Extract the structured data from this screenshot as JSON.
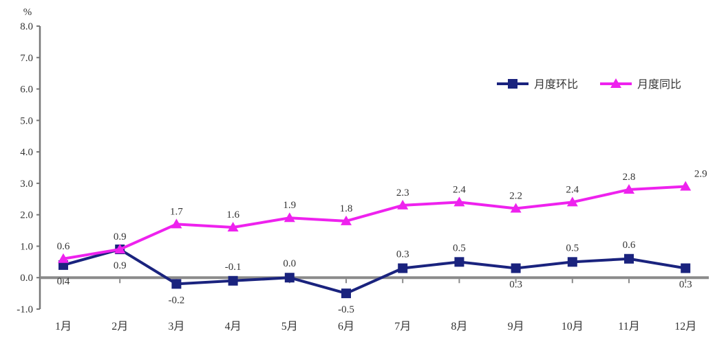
{
  "chart_data": {
    "type": "line",
    "title": "",
    "xlabel": "",
    "ylabel": "%",
    "ylim": [
      -1.0,
      8.0
    ],
    "yticks": [
      "8.0",
      "7.0",
      "6.0",
      "5.0",
      "4.0",
      "3.0",
      "2.0",
      "1.0",
      "0.0",
      "-1.0"
    ],
    "categories": [
      "1月",
      "2月",
      "3月",
      "4月",
      "5月",
      "6月",
      "7月",
      "8月",
      "9月",
      "10月",
      "11月",
      "12月"
    ],
    "grid": false,
    "legend_position": "top-right",
    "series": [
      {
        "name": "月度环比",
        "color": "#1a237e",
        "marker": "square",
        "values": [
          0.4,
          0.9,
          -0.2,
          -0.1,
          0.0,
          -0.5,
          0.3,
          0.5,
          0.3,
          0.5,
          0.6,
          0.3
        ]
      },
      {
        "name": "月度同比",
        "color": "#ee22ee",
        "marker": "triangle",
        "values": [
          0.6,
          0.9,
          1.7,
          1.6,
          1.9,
          1.8,
          2.3,
          2.4,
          2.2,
          2.4,
          2.8,
          2.9
        ]
      }
    ]
  }
}
